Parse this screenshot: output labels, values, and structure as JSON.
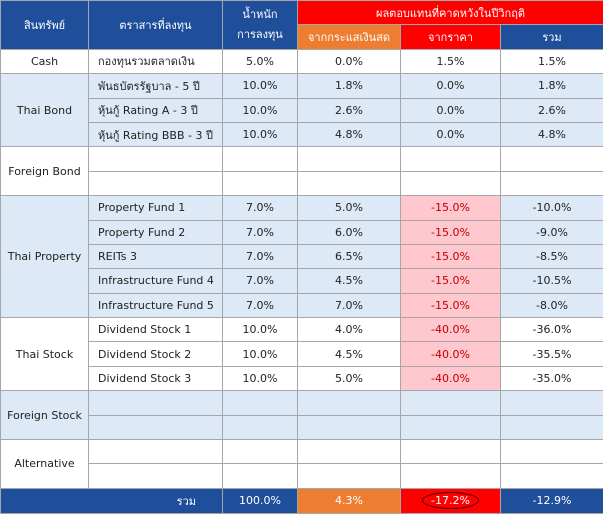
{
  "header": {
    "asset": "สินทรัพย์",
    "instrument": "ตราสารที่ลงทุน",
    "weight": [
      "น้ำหนัก",
      "การลงทุน"
    ],
    "returns": "ผลตอบแทนที่คาดหวังในปีวิกฤติ",
    "yield": "จากกระแสเงินสด",
    "price": "จากราคา",
    "total": "รวม"
  },
  "groups": [
    {
      "asset": "Cash",
      "shade": false,
      "rows": [
        [
          "กองทุนรวมตลาดเงิน",
          "5.0%",
          "0.0%",
          "1.5%",
          "1.5%"
        ]
      ]
    },
    {
      "asset": "Thai Bond",
      "shade": true,
      "rows": [
        [
          "พันธบัตรรัฐบาล - 5 ปี",
          "10.0%",
          "1.8%",
          "0.0%",
          "1.8%"
        ],
        [
          "หุ้นกู้ Rating A - 3 ปี",
          "10.0%",
          "2.6%",
          "0.0%",
          "2.6%"
        ],
        [
          "หุ้นกู้ Rating BBB - 3 ปี",
          "10.0%",
          "4.8%",
          "0.0%",
          "4.8%"
        ]
      ]
    },
    {
      "asset": "Foreign Bond",
      "shade": false,
      "rows": []
    },
    {
      "asset": "Thai Property",
      "shade": true,
      "rows": [
        [
          "Property Fund 1",
          "7.0%",
          "5.0%",
          "-15.0%",
          "-10.0%"
        ],
        [
          "Property Fund 2",
          "7.0%",
          "6.0%",
          "-15.0%",
          "-9.0%"
        ],
        [
          "REITs 3",
          "7.0%",
          "6.5%",
          "-15.0%",
          "-8.5%"
        ],
        [
          "Infrastructure Fund 4",
          "7.0%",
          "4.5%",
          "-15.0%",
          "-10.5%"
        ],
        [
          "Infrastructure Fund 5",
          "7.0%",
          "7.0%",
          "-15.0%",
          "-8.0%"
        ]
      ]
    },
    {
      "asset": "Thai Stock",
      "shade": false,
      "rows": [
        [
          "Dividend Stock 1",
          "10.0%",
          "4.0%",
          "-40.0%",
          "-36.0%"
        ],
        [
          "Dividend Stock 2",
          "10.0%",
          "4.5%",
          "-40.0%",
          "-35.5%"
        ],
        [
          "Dividend Stock 3",
          "10.0%",
          "5.0%",
          "-40.0%",
          "-35.0%"
        ]
      ]
    },
    {
      "asset": "Foreign Stock",
      "shade": true,
      "rows": []
    },
    {
      "asset": "Alternative",
      "shade": false,
      "rows": []
    }
  ],
  "total": {
    "label": "รวม",
    "weight": "100.0%",
    "yield": "4.3%",
    "price": "-17.2%",
    "total": "-12.9%"
  }
}
